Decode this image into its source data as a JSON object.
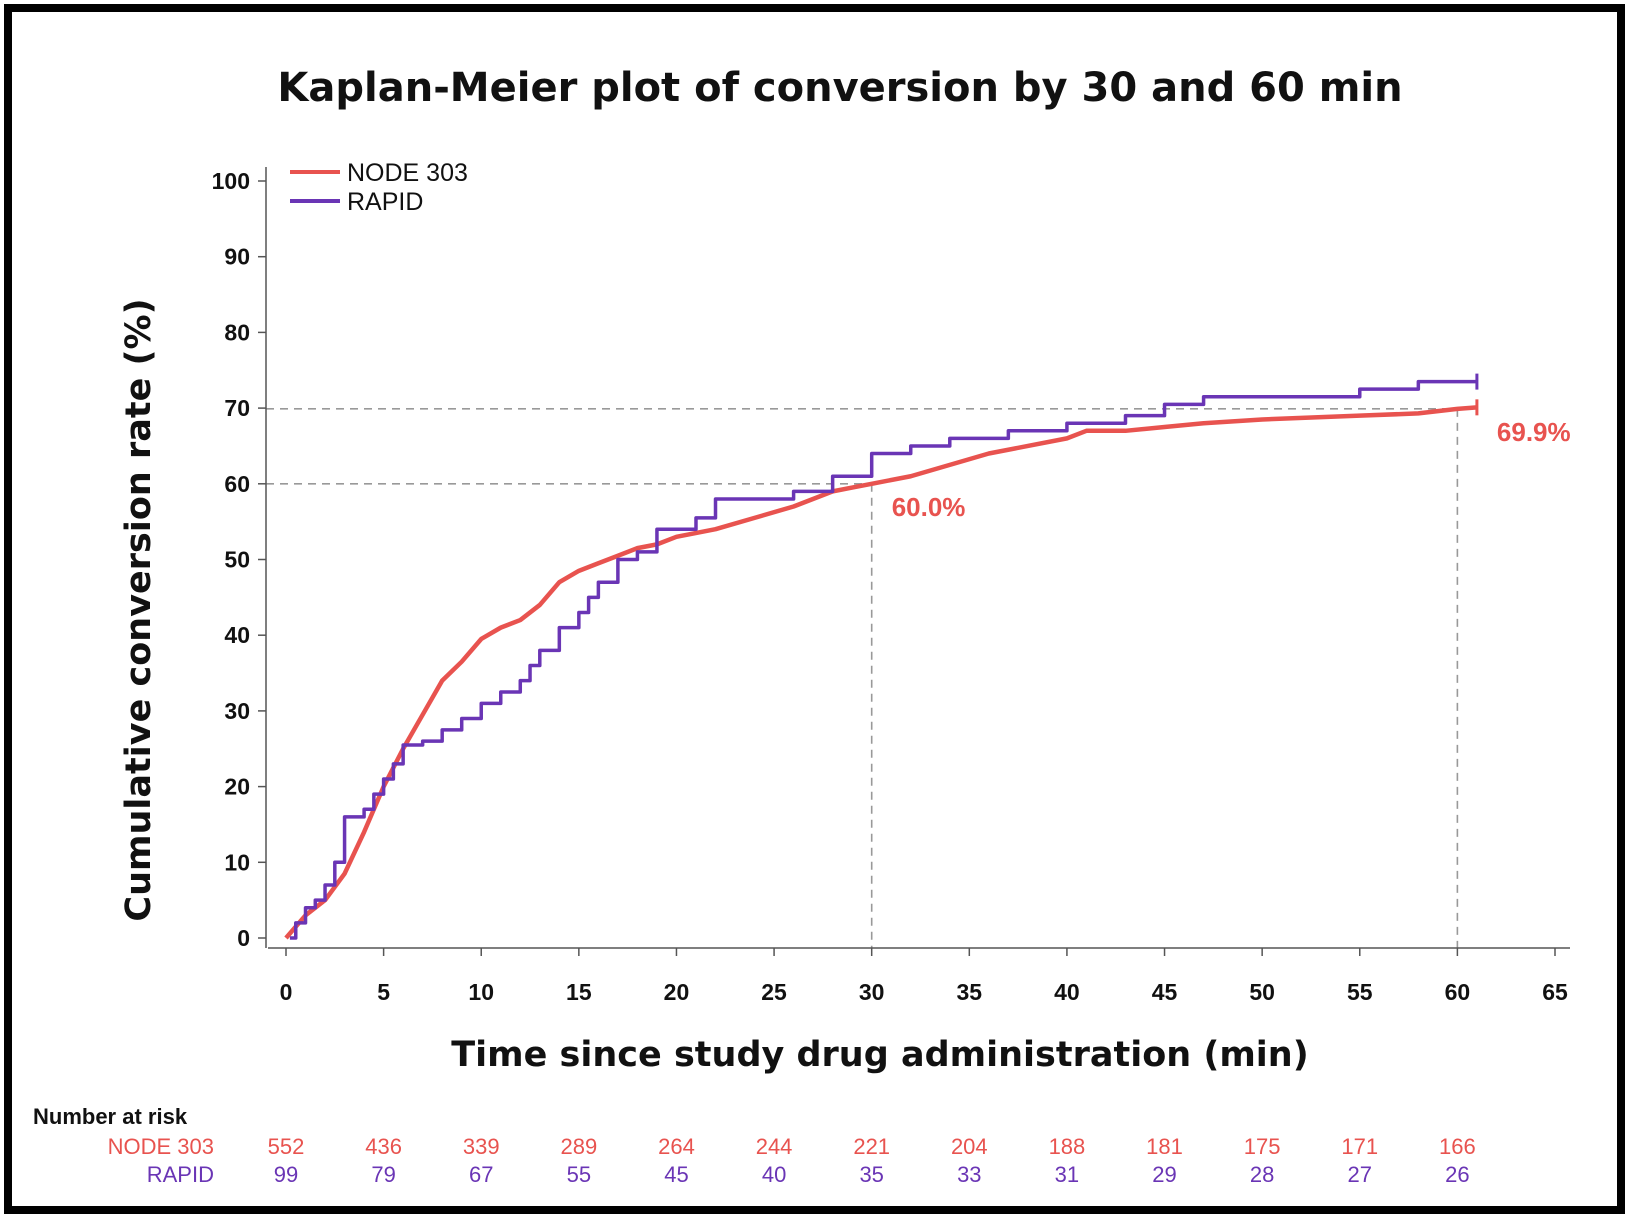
{
  "chart_data": {
    "type": "line",
    "title": "Kaplan-Meier plot of conversion by 30 and 60 min",
    "xlabel": "Time since study drug administration (min)",
    "ylabel": "Cumulative conversion rate (%)",
    "xlim": [
      0,
      65
    ],
    "ylim": [
      0,
      100
    ],
    "xticks": [
      "0",
      "5",
      "10",
      "15",
      "20",
      "25",
      "30",
      "35",
      "40",
      "45",
      "50",
      "55",
      "60",
      "65"
    ],
    "yticks": [
      "0",
      "10",
      "20",
      "30",
      "40",
      "50",
      "60",
      "70",
      "80",
      "90",
      "100"
    ],
    "legend_position": "top-left",
    "colors": {
      "node303": "#e8534f",
      "rapid": "#6a35b5",
      "ref_line": "#999999"
    },
    "series": [
      {
        "name": "NODE 303",
        "step": false,
        "x": [
          0,
          1,
          2,
          3,
          4,
          5,
          6,
          7,
          8,
          9,
          10,
          11,
          12,
          13,
          14,
          15,
          16,
          17,
          18,
          19,
          20,
          22,
          24,
          26,
          28,
          29,
          30,
          32,
          34,
          36,
          38,
          40,
          41,
          43,
          45,
          47,
          50,
          55,
          58,
          60,
          61
        ],
        "y": [
          0,
          3,
          5,
          8.5,
          14,
          20,
          25,
          29.5,
          34,
          36.5,
          39.5,
          41,
          42,
          44,
          47,
          48.5,
          49.5,
          50.5,
          51.5,
          52,
          53,
          54,
          55.5,
          57,
          59,
          59.5,
          60.0,
          61,
          62.5,
          64,
          65,
          66,
          67,
          67,
          67.5,
          68,
          68.5,
          69,
          69.3,
          69.9,
          70.1
        ]
      },
      {
        "name": "RAPID",
        "step": true,
        "x": [
          0.2,
          0.5,
          1,
          1.5,
          2,
          2.5,
          3,
          4,
          4.5,
          5,
          5.5,
          6,
          7,
          8,
          9,
          10,
          11,
          12,
          12.5,
          13,
          14,
          15,
          15.5,
          16,
          17,
          18,
          19,
          20,
          21,
          22,
          23,
          24,
          26,
          28,
          29,
          30,
          32,
          34,
          37,
          40,
          43,
          45,
          47,
          50,
          55,
          58,
          61
        ],
        "y": [
          0,
          2,
          4,
          5,
          7,
          10,
          16,
          17,
          19,
          21,
          23,
          25.5,
          26,
          27.5,
          29,
          31,
          32.5,
          34,
          36,
          38,
          41,
          43,
          45,
          47,
          50,
          51,
          54,
          54,
          55.5,
          58,
          58,
          58,
          59,
          61,
          61,
          64,
          65,
          66,
          67,
          68,
          69,
          70.5,
          71.5,
          71.5,
          72.5,
          73.5,
          73.5
        ]
      }
    ],
    "reference_lines": [
      {
        "y": 60.0,
        "x": 30
      },
      {
        "y": 69.9,
        "x": 60
      }
    ],
    "annotations": [
      {
        "text": "60.0%",
        "x": 30,
        "y": 60.0,
        "series": "NODE 303"
      },
      {
        "text": "69.9%",
        "x": 61,
        "y": 69.9,
        "series": "NODE 303"
      }
    ],
    "risk_table": {
      "heading": "Number at risk",
      "times": [
        0,
        5,
        10,
        15,
        20,
        25,
        30,
        35,
        40,
        45,
        50,
        55,
        60
      ],
      "rows": [
        {
          "label": "NODE 303",
          "values": [
            "552",
            "436",
            "339",
            "289",
            "264",
            "244",
            "221",
            "204",
            "188",
            "181",
            "175",
            "171",
            "166"
          ]
        },
        {
          "label": "RAPID",
          "values": [
            "99",
            "79",
            "67",
            "55",
            "45",
            "40",
            "35",
            "33",
            "31",
            "29",
            "28",
            "27",
            "26"
          ]
        }
      ]
    }
  }
}
